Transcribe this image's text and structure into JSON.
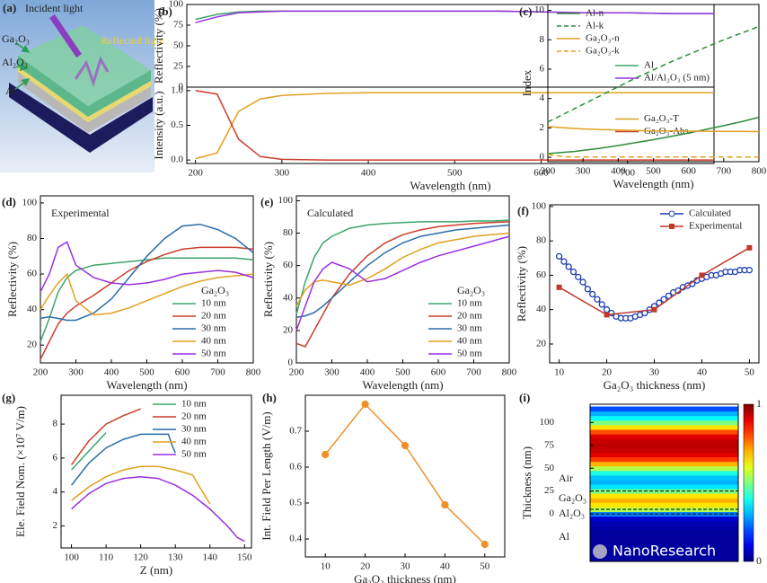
{
  "illustration": {
    "label": "(a)",
    "incident": "Incident light",
    "reflected": "Reflected light",
    "layers": [
      "Ga₂O₃",
      "Al₂O₃",
      "Al"
    ]
  },
  "watermark": "NanoResearch",
  "chart_data": [
    {
      "type": "line",
      "label": "(b)",
      "ylabel": "Reflectivity (%)",
      "xlim": [
        190,
        800
      ],
      "ylim": [
        0,
        100
      ],
      "yticks": [
        0,
        25,
        50,
        75,
        100
      ],
      "legend": "lower right",
      "x": [
        200,
        225,
        250,
        275,
        300,
        350,
        400,
        450,
        500,
        550,
        600,
        650,
        700,
        750,
        800
      ],
      "series": [
        {
          "name": "Al",
          "color": "#3aa56a",
          "values": [
            82,
            88,
            91,
            92,
            92,
            92,
            92,
            92,
            92,
            92,
            91,
            90,
            90,
            89,
            89
          ]
        },
        {
          "name": "Al/Al₂O₃ (5 nm)",
          "color": "#9a30e0",
          "values": [
            78,
            85,
            90,
            91,
            92,
            92,
            92,
            92,
            92,
            92,
            91,
            90,
            90,
            89,
            89
          ]
        }
      ]
    },
    {
      "type": "line",
      "ylabel": "Intensity (a.u.)",
      "xlabel": "Wavelength (nm)",
      "xlim": [
        190,
        800
      ],
      "ylim": [
        -0.05,
        1.05
      ],
      "xticks": [
        200,
        300,
        400,
        500,
        600,
        700
      ],
      "yticks": [
        {
          "value": 0,
          "label": "0.0"
        },
        0.5,
        {
          "value": 1,
          "label": "1.0"
        }
      ],
      "legend": "center right",
      "x": [
        200,
        225,
        250,
        275,
        300,
        350,
        400,
        450,
        500,
        550,
        600,
        650,
        700,
        750,
        800
      ],
      "series": [
        {
          "name": "Ga₂O₃-T",
          "color": "#e0a020",
          "values": [
            0.02,
            0.1,
            0.7,
            0.88,
            0.93,
            0.96,
            0.97,
            0.97,
            0.97,
            0.97,
            0.97,
            0.97,
            0.97,
            0.97,
            0.97
          ]
        },
        {
          "name": "Ga₂O₃-Abs.",
          "color": "#cc3d2a",
          "values": [
            1,
            0.95,
            0.3,
            0.05,
            0.01,
            0,
            0,
            0,
            0,
            0,
            0,
            0,
            0,
            0,
            0
          ]
        }
      ]
    },
    {
      "type": "line",
      "label": "(c)",
      "ylabel": "Index",
      "xlabel": "Wavelength (nm)",
      "xlim": [
        200,
        800
      ],
      "ylim": [
        -0.3,
        10.4
      ],
      "xticks": [
        200,
        300,
        400,
        500,
        600,
        700,
        800
      ],
      "yticks": [
        0,
        2,
        4,
        6,
        8,
        10
      ],
      "legend": "upper left",
      "x": [
        200,
        225,
        250,
        275,
        300,
        350,
        400,
        450,
        500,
        550,
        600,
        650,
        700,
        750,
        800
      ],
      "series": [
        {
          "name": "Al-n",
          "color": "#2e8b3a",
          "values": [
            0.25,
            0.3,
            0.35,
            0.4,
            0.47,
            0.62,
            0.8,
            1,
            1.2,
            1.42,
            1.65,
            1.9,
            2.15,
            2.42,
            2.72
          ]
        },
        {
          "name": "Al-k",
          "color": "#2e8b3a",
          "dash": true,
          "values": [
            2.4,
            2.7,
            3,
            3.3,
            3.6,
            4.2,
            4.8,
            5.4,
            5.95,
            6.5,
            7,
            7.5,
            8,
            8.45,
            8.9
          ]
        },
        {
          "name": "Ga₂O₃-n",
          "color": "#e0a020",
          "values": [
            2.1,
            2.05,
            2,
            1.96,
            1.93,
            1.88,
            1.85,
            1.82,
            1.8,
            1.79,
            1.78,
            1.77,
            1.76,
            1.76,
            1.75
          ]
        },
        {
          "name": "Ga₂O₃-k",
          "color": "#e0a020",
          "dash": true,
          "values": [
            0.2,
            0.1,
            0.03,
            0.02,
            0.02,
            0.02,
            0.02,
            0.02,
            0.02,
            0.02,
            0.02,
            0.02,
            0.02,
            0.02,
            0.02
          ]
        }
      ]
    },
    {
      "type": "line",
      "label": "(d)",
      "annotation": "Experimental",
      "ylabel": "Reflectivity (%)",
      "xlabel": "Wavelength (nm)",
      "xlim": [
        200,
        800
      ],
      "ylim": [
        10,
        104
      ],
      "xticks": [
        200,
        300,
        400,
        500,
        600,
        700,
        800
      ],
      "yticks": [
        20,
        40,
        60,
        80,
        100
      ],
      "legend": "lower right",
      "legend_title": "Ga₂O₃",
      "x": [
        200,
        225,
        250,
        275,
        300,
        350,
        400,
        450,
        500,
        550,
        600,
        650,
        700,
        750,
        800
      ],
      "series": [
        {
          "name": "10 nm",
          "color": "#3aa56a",
          "values": [
            22,
            35,
            50,
            58,
            62,
            65,
            66,
            67,
            68,
            69,
            69,
            69,
            69,
            69,
            68
          ]
        },
        {
          "name": "20 nm",
          "color": "#cc3d2a",
          "values": [
            12,
            22,
            32,
            38,
            42,
            48,
            55,
            62,
            67,
            71,
            74,
            75,
            75,
            75,
            74
          ]
        },
        {
          "name": "30 nm",
          "color": "#2b6ca8",
          "values": [
            35,
            36,
            35,
            34,
            34,
            38,
            46,
            58,
            70,
            80,
            87,
            88,
            85,
            80,
            72
          ]
        },
        {
          "name": "40 nm",
          "color": "#e0a020",
          "values": [
            40,
            48,
            55,
            60,
            45,
            37,
            38,
            41,
            45,
            49,
            53,
            56,
            58,
            59,
            60
          ]
        },
        {
          "name": "50 nm",
          "color": "#9a30e0",
          "values": [
            50,
            60,
            75,
            78,
            65,
            58,
            55,
            54,
            55,
            57,
            60,
            61,
            62,
            61,
            58
          ]
        }
      ]
    },
    {
      "type": "line",
      "label": "(e)",
      "annotation": "Calculated",
      "ylabel": "Reflectivity (%)",
      "xlabel": "Wavelength (nm)",
      "xlim": [
        200,
        800
      ],
      "ylim": [
        0,
        103
      ],
      "xticks": [
        200,
        300,
        400,
        500,
        600,
        700,
        800
      ],
      "yticks": [
        0,
        20,
        40,
        60,
        80,
        100
      ],
      "legend": "lower right",
      "legend_title": "Ga₂O₃",
      "x": [
        200,
        225,
        250,
        275,
        300,
        350,
        400,
        450,
        500,
        550,
        600,
        650,
        700,
        750,
        800
      ],
      "series": [
        {
          "name": "10 nm",
          "color": "#3aa56a",
          "values": [
            30,
            50,
            65,
            74,
            78,
            83,
            85,
            86,
            86.5,
            87,
            87,
            87,
            87.5,
            87.5,
            88
          ]
        },
        {
          "name": "20 nm",
          "color": "#cc3d2a",
          "values": [
            12,
            10,
            20,
            30,
            40,
            55,
            66,
            74,
            79,
            82,
            84,
            85,
            86,
            86.5,
            87
          ]
        },
        {
          "name": "30 nm",
          "color": "#2b6ca8",
          "values": [
            28,
            29,
            31,
            35,
            40,
            50,
            60,
            68,
            74,
            78,
            80,
            82,
            83,
            84,
            85
          ]
        },
        {
          "name": "40 nm",
          "color": "#e0a020",
          "values": [
            35,
            45,
            50,
            51,
            50,
            48,
            52,
            58,
            65,
            70,
            74,
            76,
            78,
            79,
            80
          ]
        },
        {
          "name": "50 nm",
          "color": "#9a30e0",
          "values": [
            20,
            35,
            50,
            58,
            62,
            58,
            50,
            52,
            57,
            62,
            66,
            69,
            72,
            75,
            78
          ]
        }
      ]
    },
    {
      "type": "line",
      "label": "(f)",
      "ylabel": "Reflectivity (%)",
      "xlabel": "Ga₂O₃ thickness (nm)",
      "xlim": [
        8,
        52
      ],
      "ylim": [
        9,
        101
      ],
      "xticks": [
        10,
        20,
        30,
        40,
        50
      ],
      "yticks": [
        20,
        40,
        60,
        80,
        100
      ],
      "legend": "upper right",
      "series": [
        {
          "name": "Calculated",
          "color": "#1f3fb0",
          "marker": "open-circle",
          "x": [
            10,
            11,
            12,
            13,
            14,
            15,
            16,
            17,
            18,
            19,
            20,
            21,
            22,
            23,
            24,
            25,
            26,
            27,
            28,
            29,
            30,
            31,
            32,
            33,
            34,
            35,
            36,
            37,
            38,
            39,
            40,
            41,
            42,
            43,
            44,
            45,
            46,
            47,
            48,
            49,
            50
          ],
          "values": [
            71,
            68,
            65,
            62,
            59,
            56,
            52,
            49,
            46,
            43,
            40,
            38,
            36,
            35,
            35,
            35,
            36,
            37,
            38,
            40,
            42,
            44,
            46,
            48,
            50,
            51,
            53,
            54,
            55,
            57,
            58,
            59,
            60,
            60,
            61,
            62,
            62,
            62,
            63,
            63,
            63
          ]
        },
        {
          "name": "Experimental",
          "color": "#c0392b",
          "marker": "square",
          "x": [
            10,
            20,
            30,
            40,
            50
          ],
          "values": [
            53,
            37,
            40,
            60,
            76
          ]
        }
      ]
    },
    {
      "type": "line",
      "label": "(g)",
      "ylabel": "Ele. Field Nom. (×10⁷ V/m)",
      "xlabel": "Z (nm)",
      "xlim": [
        97,
        152
      ],
      "ylim": [
        0.7,
        9.7
      ],
      "xticks": [
        100,
        110,
        120,
        130,
        140,
        150
      ],
      "yticks": [
        2,
        4,
        6,
        8
      ],
      "legend": "upper right",
      "series": [
        {
          "name": "10 nm",
          "color": "#3aa56a",
          "x": [
            100,
            105,
            110
          ],
          "values": [
            5.3,
            6.4,
            7.5
          ]
        },
        {
          "name": "20 nm",
          "color": "#cc3d2a",
          "x": [
            100,
            105,
            110,
            115,
            120
          ],
          "values": [
            5.6,
            7,
            8,
            8.5,
            8.9
          ]
        },
        {
          "name": "30 nm",
          "color": "#2b6ca8",
          "x": [
            100,
            105,
            110,
            115,
            120,
            125,
            128,
            129,
            130
          ],
          "values": [
            4.4,
            5.7,
            6.6,
            7.1,
            7.4,
            7.4,
            7.4,
            6.8,
            6.3
          ]
        },
        {
          "name": "40 nm",
          "color": "#e0a020",
          "x": [
            100,
            105,
            110,
            115,
            120,
            125,
            130,
            135,
            137,
            140
          ],
          "values": [
            3.5,
            4.3,
            4.9,
            5.3,
            5.5,
            5.5,
            5.3,
            5,
            4.3,
            3.3
          ]
        },
        {
          "name": "50 nm",
          "color": "#9a30e0",
          "x": [
            100,
            105,
            110,
            115,
            120,
            125,
            130,
            135,
            140,
            145,
            148,
            150
          ],
          "values": [
            3,
            3.9,
            4.5,
            4.8,
            4.9,
            4.8,
            4.4,
            3.8,
            3,
            2,
            1.3,
            1.1
          ]
        }
      ]
    },
    {
      "type": "line",
      "label": "(h)",
      "ylabel": "Int. Field Per Length (V/m)",
      "xlabel": "Ga₂O₃ thickness  (nm)",
      "xlim": [
        5,
        55
      ],
      "ylim": [
        0.35,
        0.8
      ],
      "xticks": [
        10,
        20,
        30,
        40,
        50
      ],
      "yticks": [
        0.4,
        0.5,
        0.6,
        0.7
      ],
      "series": [
        {
          "color": "#f0902a",
          "marker": "circle",
          "x": [
            10,
            20,
            30,
            40,
            50
          ],
          "values": [
            0.635,
            0.775,
            0.66,
            0.495,
            0.385
          ]
        }
      ]
    },
    {
      "type": "heatmap",
      "label": "(i)",
      "ylabel": "Thickness (nm)",
      "ylim": [
        -52,
        120
      ],
      "yticks": [
        0,
        25,
        50,
        75,
        100
      ],
      "colormap": "jet",
      "clim": [
        0,
        1
      ],
      "cticks": [
        0,
        1
      ],
      "y": [
        -50,
        -45,
        -40,
        -35,
        -30,
        -25,
        -20,
        -15,
        -10,
        -5,
        0,
        5,
        10,
        15,
        20,
        25,
        30,
        35,
        40,
        45,
        50,
        55,
        60,
        65,
        70,
        75,
        80,
        85,
        90,
        95,
        100,
        105,
        110,
        115
      ],
      "values": [
        0.03,
        0.03,
        0.03,
        0.03,
        0.03,
        0.03,
        0.03,
        0.04,
        0.05,
        0.08,
        0.25,
        0.55,
        0.65,
        0.7,
        0.65,
        0.5,
        0.35,
        0.3,
        0.32,
        0.4,
        0.55,
        0.7,
        0.82,
        0.9,
        0.93,
        0.94,
        0.93,
        0.9,
        0.8,
        0.65,
        0.5,
        0.38,
        0.3,
        0.2
      ],
      "boundaries": [
        25,
        5,
        0
      ],
      "layers": [
        "Air",
        "Ga₂O₃",
        "Al₂O₃",
        "Al"
      ]
    }
  ]
}
